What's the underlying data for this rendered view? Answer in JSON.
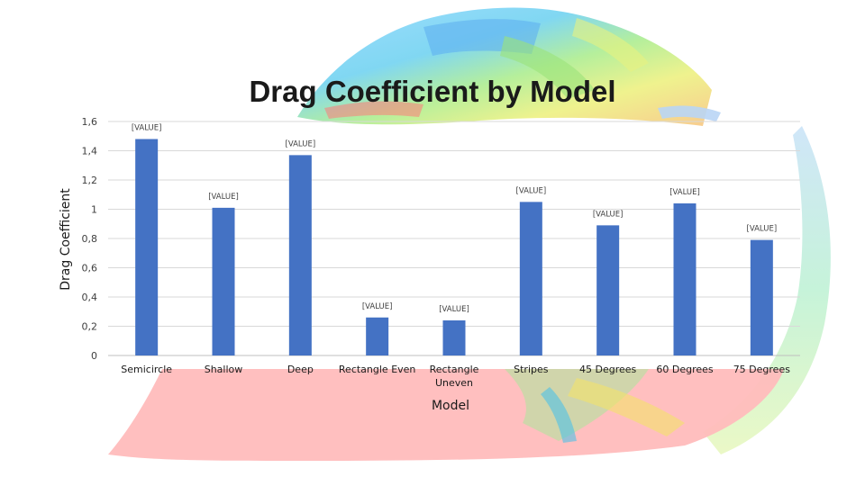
{
  "chart_data": {
    "type": "bar",
    "title": "Drag Coefficient by Model",
    "xlabel": "Model",
    "ylabel": "Drag Coefficient",
    "ylim": [
      0,
      1.6
    ],
    "yticks": [
      "0",
      "0,2",
      "0,4",
      "0,6",
      "0,8",
      "1",
      "1,2",
      "1,4",
      "1,6"
    ],
    "grid": true,
    "legend": "none",
    "bar_color": "#4472c4",
    "data_label_text": "[VALUE]",
    "categories": [
      "Semicircle",
      "Shallow",
      "Deep",
      "Rectangle Even",
      "Rectangle Uneven",
      "Stripes",
      "45 Degrees",
      "60 Degrees",
      "75 Degrees"
    ],
    "values": [
      1.48,
      1.01,
      1.37,
      0.26,
      0.24,
      1.05,
      0.89,
      1.04,
      0.79
    ]
  }
}
